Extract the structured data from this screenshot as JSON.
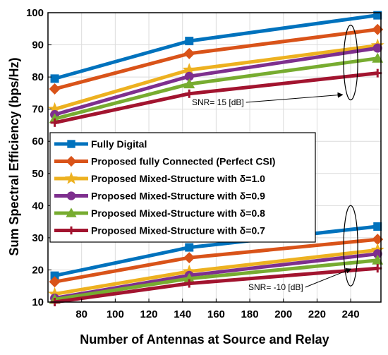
{
  "chart_data": {
    "type": "line",
    "title": "",
    "xlabel": "Number of Antennas at Source and Relay",
    "ylabel": "Sum Spectral Efficiency (bps/Hz)",
    "xlim": [
      60,
      258
    ],
    "ylim": [
      10,
      100
    ],
    "xticks": [
      80,
      100,
      120,
      140,
      160,
      180,
      200,
      220,
      240
    ],
    "yticks": [
      10,
      20,
      30,
      40,
      50,
      60,
      70,
      80,
      90,
      100
    ],
    "grid": true,
    "legend_position": "center-left",
    "x": [
      64,
      144,
      256
    ],
    "series": [
      {
        "name": "Fully Digital",
        "name_suffix": "",
        "color": "#0072BD",
        "marker": "square",
        "values": [
          79.5,
          91.2,
          99.2
        ]
      },
      {
        "name": "Proposed fully Connected (Perfect CSI)",
        "name_suffix": "",
        "color": "#D95319",
        "marker": "diamond",
        "values": [
          76.3,
          87.3,
          94.8
        ]
      },
      {
        "name": "Proposed Mixed-Structure with δ=",
        "name_suffix": "1.0",
        "color": "#EDB120",
        "marker": "star",
        "values": [
          70.0,
          82.2,
          89.8
        ]
      },
      {
        "name": "Proposed Mixed-Structure with δ=",
        "name_suffix": "0.9",
        "color": "#7E2F8E",
        "marker": "circle",
        "values": [
          68.3,
          80.2,
          89.0
        ]
      },
      {
        "name": "Proposed Mixed-Structure with δ=",
        "name_suffix": "0.8",
        "color": "#77AC30",
        "marker": "triangle",
        "values": [
          67.0,
          77.8,
          85.8
        ]
      },
      {
        "name": "Proposed Mixed-Structure with δ=",
        "name_suffix": "0.7",
        "color": "#A2142F",
        "marker": "plus",
        "values": [
          65.8,
          74.8,
          81.2
        ]
      },
      {
        "name": "",
        "color": "#0072BD",
        "marker": "square",
        "values": [
          18.2,
          27.0,
          33.5
        ]
      },
      {
        "name": "",
        "color": "#D95319",
        "marker": "diamond",
        "values": [
          16.3,
          23.8,
          29.5
        ]
      },
      {
        "name": "",
        "color": "#EDB120",
        "marker": "star",
        "values": [
          12.5,
          19.5,
          26.2
        ]
      },
      {
        "name": "",
        "color": "#7E2F8E",
        "marker": "circle",
        "values": [
          11.2,
          18.3,
          25.0
        ]
      },
      {
        "name": "",
        "color": "#77AC30",
        "marker": "triangle",
        "values": [
          10.8,
          17.3,
          23.0
        ]
      },
      {
        "name": "",
        "color": "#A2142F",
        "marker": "plus",
        "values": [
          10.0,
          15.8,
          20.5
        ]
      }
    ],
    "annotations": [
      {
        "text": "SNR= 15 [dB]",
        "ellipse_center": [
          240,
          84.5
        ],
        "arrow_to": [
          236,
          74.5
        ]
      },
      {
        "text": "SNR= -10 [dB]",
        "ellipse_center": [
          240,
          27.5
        ],
        "arrow_to": [
          241,
          20.3
        ]
      }
    ]
  }
}
